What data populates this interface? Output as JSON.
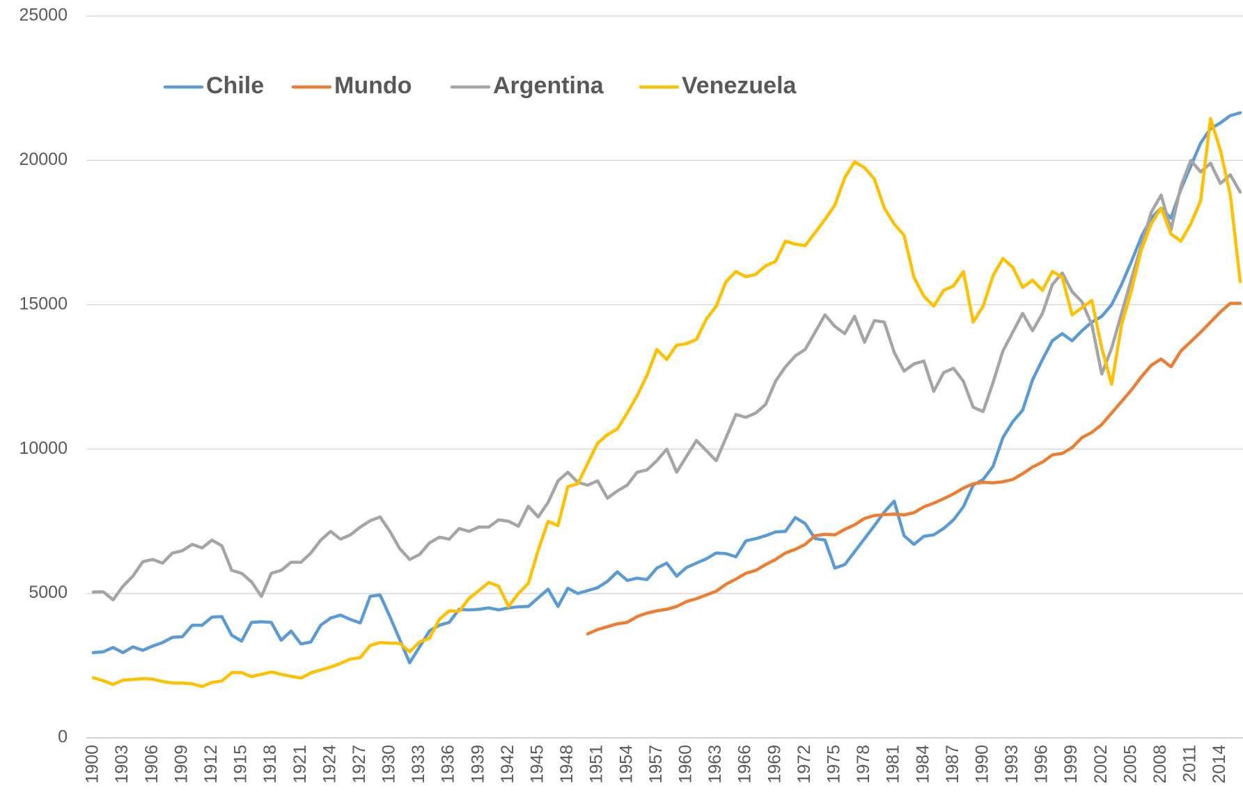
{
  "chart_data": {
    "type": "line",
    "categories": [
      "1900",
      null,
      null,
      "1903",
      null,
      null,
      "1906",
      null,
      null,
      "1909",
      null,
      null,
      "1912",
      null,
      null,
      "1915",
      null,
      null,
      "1918",
      null,
      null,
      "1921",
      null,
      null,
      "1924",
      null,
      null,
      "1927",
      null,
      null,
      "1930",
      null,
      null,
      "1933",
      null,
      null,
      "1936",
      null,
      null,
      "1939",
      null,
      null,
      "1942",
      null,
      null,
      "1945",
      null,
      null,
      "1948",
      null,
      null,
      "1951",
      null,
      null,
      "1954",
      null,
      null,
      "1957",
      null,
      null,
      "1960",
      null,
      null,
      "1963",
      null,
      null,
      "1966",
      null,
      null,
      "1969",
      null,
      null,
      "1972",
      null,
      null,
      "1975",
      null,
      null,
      "1978",
      null,
      null,
      "1981",
      null,
      null,
      "1984",
      null,
      null,
      "1987",
      null,
      null,
      "1990",
      null,
      null,
      "1993",
      null,
      null,
      "1996",
      null,
      null,
      "1999",
      null,
      null,
      "2002",
      null,
      null,
      "2005",
      null,
      null,
      "2008",
      null,
      null,
      "2011",
      null,
      null,
      "2014",
      null,
      null
    ],
    "ylim": [
      0,
      25000
    ],
    "yticks": [
      0,
      5000,
      10000,
      15000,
      20000,
      25000
    ],
    "grid": true,
    "legend": "top",
    "series": [
      {
        "name": "Chile",
        "color": "#5b9bd5",
        "values": [
          2950,
          2980,
          3130,
          2950,
          3150,
          3030,
          3180,
          3300,
          3480,
          3500,
          3900,
          3900,
          4180,
          4200,
          3550,
          3350,
          4000,
          4020,
          4000,
          3380,
          3700,
          3250,
          3320,
          3900,
          4150,
          4250,
          4100,
          3980,
          4900,
          4950,
          4200,
          3400,
          2600,
          3150,
          3700,
          3900,
          4000,
          4450,
          4430,
          4450,
          4500,
          4430,
          4500,
          4540,
          4550,
          4850,
          5150,
          4550,
          5180,
          5000,
          5100,
          5200,
          5420,
          5750,
          5450,
          5530,
          5480,
          5880,
          6050,
          5600,
          5900,
          6050,
          6200,
          6400,
          6380,
          6270,
          6820,
          6900,
          7000,
          7130,
          7150,
          7630,
          7420,
          6900,
          6850,
          5880,
          6000,
          6450,
          6900,
          7350,
          7820,
          8200,
          7000,
          6700,
          6980,
          7030,
          7250,
          7550,
          8000,
          8750,
          8950,
          9400,
          10400,
          10950,
          11350,
          12400,
          13100,
          13750,
          14000,
          13750,
          14100,
          14400,
          14600,
          15000,
          15700,
          16500,
          17350,
          18000,
          18350,
          18000,
          19000,
          19800,
          20600,
          21100,
          21300,
          21550,
          21650
        ]
      },
      {
        "name": "Mundo",
        "color": "#ed7d31",
        "values": [
          null,
          null,
          null,
          null,
          null,
          null,
          null,
          null,
          null,
          null,
          null,
          null,
          null,
          null,
          null,
          null,
          null,
          null,
          null,
          null,
          null,
          null,
          null,
          null,
          null,
          null,
          null,
          null,
          null,
          null,
          null,
          null,
          null,
          null,
          null,
          null,
          null,
          null,
          null,
          null,
          null,
          null,
          null,
          null,
          null,
          null,
          null,
          null,
          null,
          null,
          3600,
          3750,
          3850,
          3950,
          4000,
          4200,
          4320,
          4400,
          4450,
          4550,
          4720,
          4820,
          4950,
          5080,
          5320,
          5500,
          5700,
          5800,
          6000,
          6180,
          6400,
          6530,
          6700,
          7000,
          7050,
          7030,
          7220,
          7380,
          7600,
          7700,
          7730,
          7750,
          7720,
          7800,
          8000,
          8130,
          8280,
          8450,
          8650,
          8800,
          8850,
          8830,
          8870,
          8950,
          9150,
          9380,
          9550,
          9800,
          9850,
          10050,
          10400,
          10580,
          10850,
          11250,
          11650,
          12050,
          12500,
          12900,
          13120,
          12850,
          13400,
          13720,
          14050,
          14400,
          14750,
          15050,
          15050
        ]
      },
      {
        "name": "Argentina",
        "color": "#a5a5a5",
        "values": [
          5050,
          5060,
          4780,
          5250,
          5600,
          6100,
          6180,
          6050,
          6400,
          6480,
          6700,
          6580,
          6850,
          6650,
          5800,
          5700,
          5400,
          4900,
          5700,
          5800,
          6080,
          6080,
          6400,
          6850,
          7150,
          6880,
          7030,
          7300,
          7520,
          7650,
          7150,
          6550,
          6180,
          6350,
          6750,
          6950,
          6880,
          7250,
          7150,
          7300,
          7300,
          7550,
          7500,
          7330,
          8020,
          7650,
          8150,
          8900,
          9200,
          8850,
          8750,
          8900,
          8300,
          8550,
          8750,
          9200,
          9280,
          9600,
          10000,
          9200,
          9750,
          10300,
          9950,
          9600,
          10400,
          11200,
          11100,
          11250,
          11550,
          12350,
          12850,
          13230,
          13450,
          14050,
          14650,
          14250,
          14000,
          14600,
          13700,
          14450,
          14400,
          13350,
          12700,
          12950,
          13050,
          12000,
          12650,
          12800,
          12350,
          11450,
          11300,
          12300,
          13400,
          14050,
          14700,
          14100,
          14700,
          15700,
          16100,
          15450,
          15100,
          14300,
          12600,
          13500,
          14700,
          15900,
          17050,
          18200,
          18800,
          17600,
          19100,
          20000,
          19600,
          19900,
          19200,
          19500,
          18900
        ]
      },
      {
        "name": "Venezuela",
        "color": "#ffc000",
        "values": [
          2080,
          1980,
          1850,
          2000,
          2020,
          2050,
          2030,
          1950,
          1900,
          1900,
          1870,
          1780,
          1920,
          1970,
          2260,
          2260,
          2120,
          2200,
          2280,
          2200,
          2130,
          2070,
          2250,
          2350,
          2450,
          2580,
          2730,
          2780,
          3200,
          3300,
          3280,
          3270,
          2980,
          3320,
          3450,
          4100,
          4400,
          4380,
          4830,
          5100,
          5380,
          5250,
          4550,
          5000,
          5350,
          6500,
          7500,
          7350,
          8700,
          8800,
          9500,
          10200,
          10500,
          10700,
          11250,
          11850,
          12550,
          13450,
          13100,
          13600,
          13650,
          13800,
          14500,
          14950,
          15800,
          16150,
          15970,
          16050,
          16350,
          16500,
          17200,
          17100,
          17050,
          17500,
          17950,
          18450,
          19400,
          19950,
          19750,
          19350,
          18350,
          17800,
          17400,
          15950,
          15300,
          14950,
          15500,
          15650,
          16150,
          14400,
          14950,
          16000,
          16600,
          16300,
          15600,
          15850,
          15500,
          16150,
          15950,
          14650,
          14900,
          15150,
          13500,
          12250,
          14300,
          15500,
          16900,
          17800,
          18350,
          17450,
          17200,
          17800,
          18600,
          21450,
          20350,
          18800,
          15800
        ]
      }
    ]
  }
}
